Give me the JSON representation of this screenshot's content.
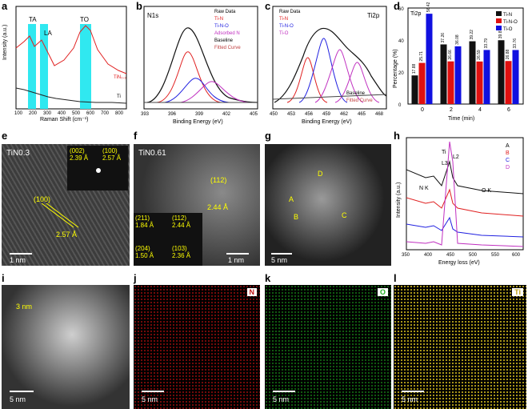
{
  "panels": {
    "a": {
      "label": "a",
      "xlabel": "Raman Shift (cm⁻¹)",
      "ylabel": "Intensity (a.u.)",
      "bands": [
        "TA",
        "LA",
        "TO"
      ],
      "series": [
        "TiN₀.₃",
        "Ti"
      ],
      "ticks": [
        "100",
        "200",
        "300",
        "400",
        "500",
        "600",
        "700",
        "800"
      ]
    },
    "b": {
      "label": "b",
      "title": "N1s",
      "xlabel": "Binding Energy (eV)",
      "ticks": [
        "393",
        "396",
        "399",
        "402",
        "405"
      ],
      "legend": [
        "Raw Data",
        "Ti-N",
        "Ti-N-O",
        "Adsorbed N",
        "Baseline",
        "Fitted Curve"
      ]
    },
    "c": {
      "label": "c",
      "title": "Ti2p",
      "xlabel": "Binding Energy (eV)",
      "ticks": [
        "450",
        "453",
        "456",
        "459",
        "462",
        "465",
        "468"
      ],
      "legend_top": [
        "Raw Data",
        "Ti-N",
        "Ti-N-O",
        "Ti-O"
      ],
      "legend_bottom": [
        "Baseline",
        "Fitted Curve"
      ]
    },
    "d": {
      "label": "d",
      "title": "Ti2p",
      "xlabel": "Time (min)",
      "ylabel": "Percentage (%)"
    },
    "e": {
      "label": "e",
      "name": "TiN0.3",
      "d1": "(002)\n2.39 Å",
      "d2": "(100)\n2.57 Å",
      "plane": "(100)",
      "spacing": "2.57 Å",
      "scale": "1 nm"
    },
    "f": {
      "label": "f",
      "name": "TiN0.61",
      "plane": "(112)",
      "spacing": "2.44 Å",
      "r1": "(211)\n1.84 Å",
      "r2": "(112)\n2.44 Å",
      "r3": "(204)\n1.50 Å",
      "r4": "(103)\n2.36 Å",
      "scale": "1 nm"
    },
    "g": {
      "label": "g",
      "points": [
        "A",
        "B",
        "C",
        "D"
      ],
      "scale": "5 nm"
    },
    "h": {
      "label": "h",
      "xlabel": "Energy loss (eV)",
      "ylabel": "Intensity (a.u.)",
      "edges": [
        "N K",
        "Ti",
        "L3",
        "L2",
        "O K"
      ],
      "legend": [
        "A",
        "B",
        "C",
        "D"
      ],
      "ticks": [
        "350",
        "400",
        "450",
        "500",
        "550",
        "600"
      ]
    },
    "i": {
      "label": "i",
      "size": "3 nm",
      "scale": "5 nm"
    },
    "j": {
      "label": "j",
      "element": "N",
      "scale": "5 nm"
    },
    "k": {
      "label": "k",
      "element": "O",
      "scale": "5 nm"
    },
    "l": {
      "label": "l",
      "element": "Ti",
      "scale": "5 nm"
    }
  },
  "chart_data": [
    {
      "type": "bar",
      "panel": "d",
      "title": "Ti2p",
      "xlabel": "Time (min)",
      "ylabel": "Percentage (%)",
      "categories": [
        "0",
        "2",
        "4",
        "6"
      ],
      "series": [
        {
          "name": "Ti-N",
          "values": [
            17.88,
            37.26,
            39.22,
            39.87
          ]
        },
        {
          "name": "Ti-N-O",
          "values": [
            25.71,
            26.66,
            26.59,
            26.88
          ]
        },
        {
          "name": "Ti-O",
          "values": [
            56.42,
            36.08,
            33.79,
            33.76
          ]
        }
      ],
      "ylim": [
        0,
        60
      ],
      "colors": [
        "#111111",
        "#e01010",
        "#1010e0"
      ]
    }
  ]
}
